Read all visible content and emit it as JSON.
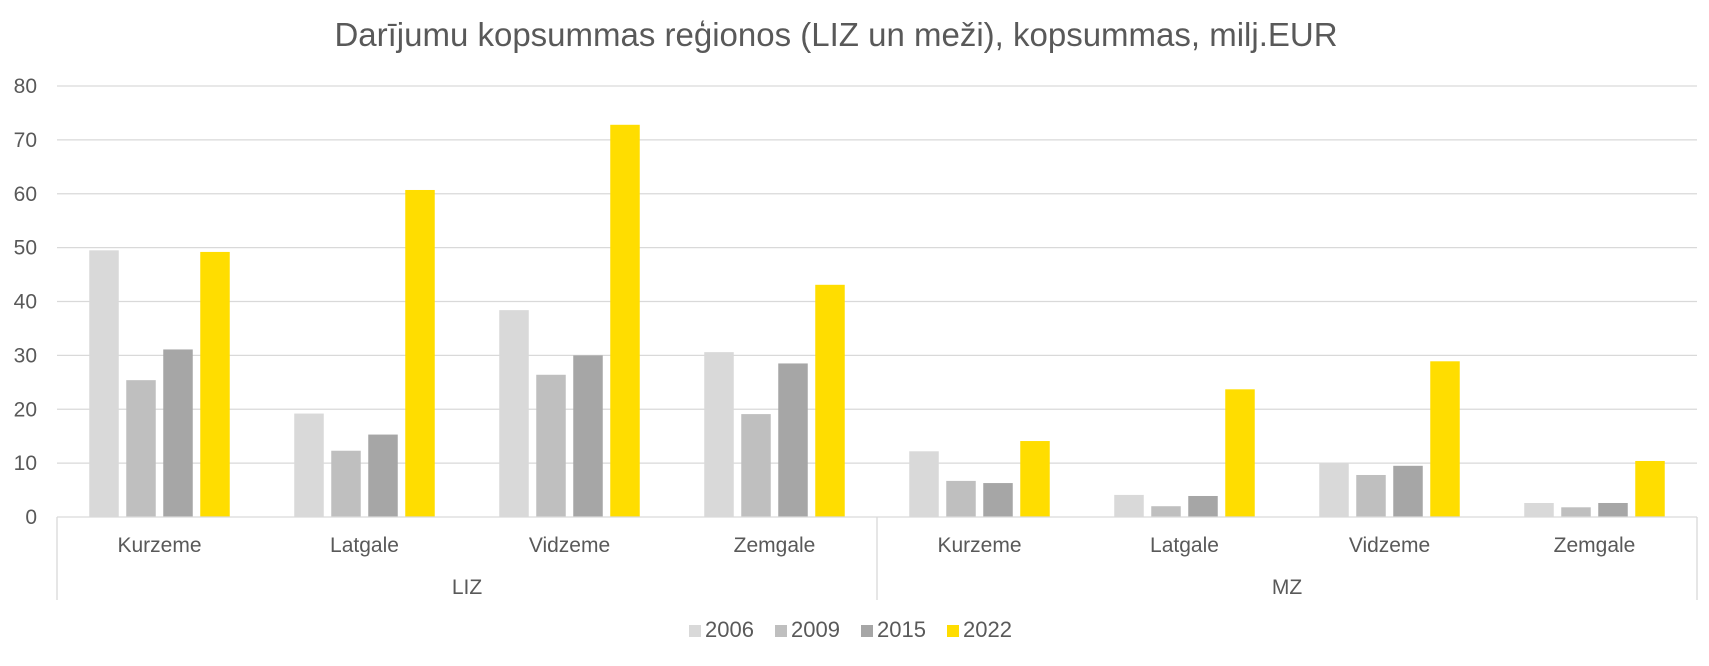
{
  "chart_data": {
    "type": "bar",
    "title": "Darījumu kopsummas reģionos (LIZ un meži), kopsummas, milj.EUR",
    "xlabel": "",
    "ylabel": "",
    "ylim": [
      0,
      80
    ],
    "yticks": [
      0,
      10,
      20,
      30,
      40,
      50,
      60,
      70,
      80
    ],
    "grid": true,
    "legend_position": "bottom",
    "groups": [
      {
        "label": "LIZ",
        "categories": [
          "Kurzeme",
          "Latgale",
          "Vidzeme",
          "Zemgale"
        ]
      },
      {
        "label": "MZ",
        "categories": [
          "Kurzeme",
          "Latgale",
          "Vidzeme",
          "Zemgale"
        ]
      }
    ],
    "categories": [
      "LIZ Kurzeme",
      "LIZ Latgale",
      "LIZ Vidzeme",
      "LIZ Zemgale",
      "MZ Kurzeme",
      "MZ Latgale",
      "MZ Vidzeme",
      "MZ Zemgale"
    ],
    "series": [
      {
        "name": "2006",
        "color": "#D9D9D9",
        "values": [
          49.5,
          19.2,
          38.4,
          30.6,
          12.2,
          4.1,
          10.1,
          2.6
        ]
      },
      {
        "name": "2009",
        "color": "#BFBFBF",
        "values": [
          25.4,
          12.3,
          26.4,
          19.1,
          6.7,
          2.0,
          7.8,
          1.8
        ]
      },
      {
        "name": "2015",
        "color": "#A6A6A6",
        "values": [
          31.1,
          15.3,
          30.0,
          28.5,
          6.3,
          3.9,
          9.5,
          2.6
        ]
      },
      {
        "name": "2022",
        "color": "#FFDD00",
        "values": [
          49.2,
          60.7,
          72.8,
          43.1,
          14.1,
          23.7,
          28.9,
          10.4
        ]
      }
    ]
  }
}
